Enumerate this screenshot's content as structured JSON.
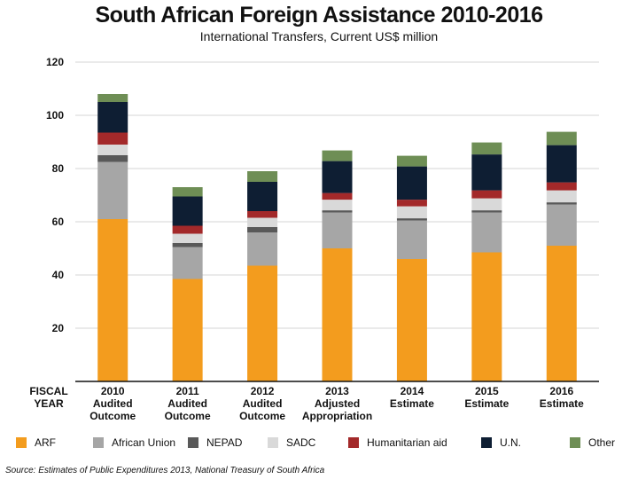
{
  "chart_data": {
    "type": "bar",
    "stacked": true,
    "title": "South African Foreign Assistance 2010-2016",
    "subtitle": "International Transfers, Current US$ million",
    "x_axis_header": [
      "FISCAL",
      "YEAR"
    ],
    "categories": [
      [
        "2010",
        "Audited",
        "Outcome"
      ],
      [
        "2011",
        "Audited",
        "Outcome"
      ],
      [
        "2012",
        "Audited",
        "Outcome"
      ],
      [
        "2013",
        "Adjusted",
        "Appropriation"
      ],
      [
        "2014",
        "Estimate"
      ],
      [
        "2015",
        "Estimate"
      ],
      [
        "2016",
        "Estimate"
      ]
    ],
    "ylim": [
      0,
      120
    ],
    "yticks": [
      20,
      40,
      60,
      80,
      100,
      120
    ],
    "grid": true,
    "legend_position": "bottom",
    "series": [
      {
        "name": "ARF",
        "color": "#f39c1e",
        "values": [
          61,
          38.5,
          43.5,
          50,
          46,
          48.5,
          51
        ]
      },
      {
        "name": "African Union",
        "color": "#a6a6a6",
        "values": [
          21.5,
          12,
          12.5,
          13.5,
          14.5,
          15,
          15.5
        ]
      },
      {
        "name": "NEPAD",
        "color": "#595959",
        "values": [
          2.5,
          1.5,
          2,
          0.8,
          0.8,
          0.8,
          0.8
        ]
      },
      {
        "name": "SADC",
        "color": "#d9d9d9",
        "values": [
          4,
          3.5,
          3.5,
          4,
          4.5,
          4.5,
          4.5
        ]
      },
      {
        "name": "Humanitarian aid",
        "color": "#a3292a",
        "values": [
          4.5,
          3,
          2.5,
          2.5,
          2.5,
          3,
          3
        ]
      },
      {
        "name": "U.N.",
        "color": "#0e1e33",
        "values": [
          11.5,
          11,
          11,
          12,
          12.5,
          13.5,
          14
        ]
      },
      {
        "name": "Other",
        "color": "#6e8e55",
        "values": [
          3,
          3.5,
          4,
          4,
          4,
          4.5,
          5
        ]
      }
    ],
    "source": "Source: Estimates of Public Expenditures 2013, National Treasury of South Africa"
  }
}
